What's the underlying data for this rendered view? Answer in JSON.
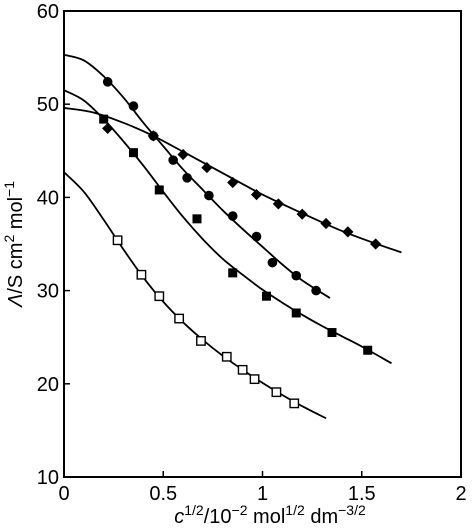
{
  "chart_data": {
    "type": "scatter",
    "xlabel": "c1/2/10−2 mol1/2 dm−3/2",
    "xlabel_parts": {
      "sym": "c",
      "sym_sup": "1/2",
      "mid": "/10",
      "mid_sup": "−2",
      "u1": " mol",
      "u1_sup": "1/2",
      "u2": " dm",
      "u2_sup": "−3/2"
    },
    "ylabel": "Λ/S cm2 mol−1",
    "ylabel_parts": {
      "sym": "Λ",
      "mid": "/S cm",
      "mid_sup": "2",
      "u1": " mol",
      "u1_sup": "−1"
    },
    "xlim": [
      0,
      2
    ],
    "ylim": [
      10,
      60
    ],
    "xticks": [
      0,
      0.5,
      1,
      1.5,
      2
    ],
    "xtick_labels": [
      "0",
      "0.5",
      "1",
      "1.5",
      "2"
    ],
    "yticks": [
      10,
      20,
      30,
      40,
      50,
      60
    ],
    "ytick_labels": [
      "10",
      "20",
      "30",
      "40",
      "50",
      "60"
    ],
    "grid": false,
    "legend": "none",
    "series": [
      {
        "marker": "diamond-filled",
        "points": [
          [
            0.22,
            47.4
          ],
          [
            0.45,
            46.6
          ],
          [
            0.6,
            44.6
          ],
          [
            0.72,
            43.2
          ],
          [
            0.85,
            41.6
          ],
          [
            0.97,
            40.3
          ],
          [
            1.08,
            39.3
          ],
          [
            1.2,
            38.2
          ],
          [
            1.32,
            37.2
          ],
          [
            1.43,
            36.3
          ],
          [
            1.57,
            35.0
          ]
        ],
        "curve": [
          [
            0,
            49.6
          ],
          [
            0.15,
            49.1
          ],
          [
            0.3,
            48.0
          ],
          [
            0.45,
            46.6
          ],
          [
            0.6,
            44.9
          ],
          [
            0.8,
            42.6
          ],
          [
            1.0,
            40.3
          ],
          [
            1.2,
            38.3
          ],
          [
            1.4,
            36.4
          ],
          [
            1.55,
            35.2
          ],
          [
            1.7,
            34.1
          ]
        ]
      },
      {
        "marker": "circle-filled",
        "points": [
          [
            0.22,
            52.4
          ],
          [
            0.35,
            49.8
          ],
          [
            0.45,
            46.6
          ],
          [
            0.55,
            44.0
          ],
          [
            0.62,
            42.1
          ],
          [
            0.73,
            40.2
          ],
          [
            0.85,
            38.0
          ],
          [
            0.97,
            35.8
          ],
          [
            1.05,
            33.0
          ],
          [
            1.17,
            31.6
          ],
          [
            1.27,
            30.0
          ]
        ],
        "curve": [
          [
            0,
            55.3
          ],
          [
            0.1,
            54.7
          ],
          [
            0.2,
            53.0
          ],
          [
            0.3,
            50.7
          ],
          [
            0.4,
            48.0
          ],
          [
            0.5,
            45.5
          ],
          [
            0.6,
            43.0
          ],
          [
            0.7,
            40.8
          ],
          [
            0.8,
            38.6
          ],
          [
            0.9,
            36.6
          ],
          [
            1.0,
            34.7
          ],
          [
            1.1,
            32.8
          ],
          [
            1.2,
            31.1
          ],
          [
            1.34,
            29.2
          ]
        ]
      },
      {
        "marker": "square-filled",
        "points": [
          [
            0.2,
            48.4
          ],
          [
            0.35,
            44.8
          ],
          [
            0.48,
            40.8
          ],
          [
            0.67,
            37.7
          ],
          [
            0.85,
            31.9
          ],
          [
            1.02,
            29.4
          ],
          [
            1.17,
            27.6
          ],
          [
            1.35,
            25.5
          ],
          [
            1.53,
            23.6
          ]
        ],
        "curve": [
          [
            0,
            51.5
          ],
          [
            0.1,
            50.4
          ],
          [
            0.2,
            48.4
          ],
          [
            0.3,
            46.0
          ],
          [
            0.4,
            43.4
          ],
          [
            0.5,
            40.6
          ],
          [
            0.6,
            37.9
          ],
          [
            0.7,
            35.5
          ],
          [
            0.8,
            33.4
          ],
          [
            0.9,
            31.7
          ],
          [
            1.0,
            30.1
          ],
          [
            1.1,
            28.7
          ],
          [
            1.2,
            27.4
          ],
          [
            1.3,
            26.2
          ],
          [
            1.4,
            25.1
          ],
          [
            1.5,
            24.0
          ],
          [
            1.65,
            22.2
          ]
        ]
      },
      {
        "marker": "square-open",
        "points": [
          [
            0.27,
            35.4
          ],
          [
            0.39,
            31.7
          ],
          [
            0.48,
            29.4
          ],
          [
            0.58,
            27.0
          ],
          [
            0.69,
            24.6
          ],
          [
            0.82,
            22.9
          ],
          [
            0.9,
            21.5
          ],
          [
            0.96,
            20.5
          ],
          [
            1.07,
            19.1
          ],
          [
            1.16,
            17.9
          ]
        ],
        "curve": [
          [
            0,
            42.7
          ],
          [
            0.1,
            40.6
          ],
          [
            0.2,
            37.6
          ],
          [
            0.3,
            34.4
          ],
          [
            0.4,
            31.4
          ],
          [
            0.5,
            28.8
          ],
          [
            0.6,
            26.6
          ],
          [
            0.7,
            24.7
          ],
          [
            0.8,
            23.0
          ],
          [
            0.9,
            21.5
          ],
          [
            1.0,
            20.1
          ],
          [
            1.1,
            18.8
          ],
          [
            1.2,
            17.6
          ],
          [
            1.32,
            16.3
          ]
        ]
      }
    ]
  }
}
